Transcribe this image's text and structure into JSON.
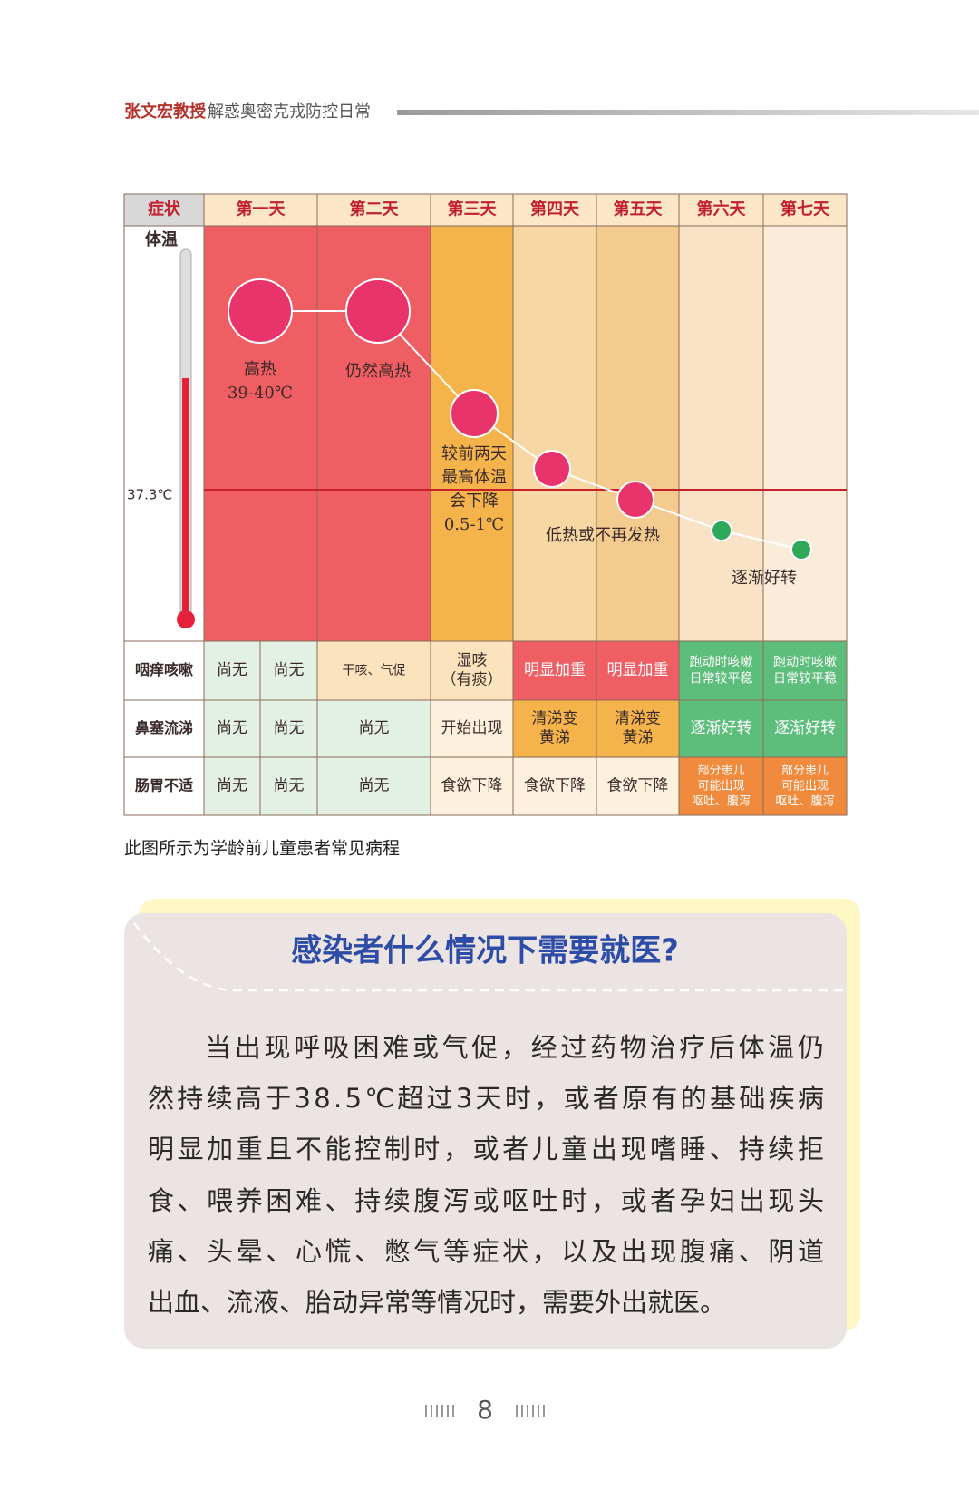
{
  "header": {
    "author": "张文宏教授",
    "title": "解惑奥密克戎防控日常"
  },
  "figure": {
    "columns": [
      "症状",
      "第一天",
      "第二天",
      "第三天",
      "第四天",
      "第五天",
      "第六天",
      "第七天"
    ],
    "temperature": {
      "label": "体温",
      "threshold": "37.3℃",
      "annotations": [
        [
          "高热",
          "39-40℃"
        ],
        [
          "仍然高热"
        ],
        [
          "较前两天",
          "最高体温",
          "会下降",
          "0.5-1℃"
        ],
        [
          "低热或不再发热"
        ],
        [
          "逐渐好转"
        ]
      ]
    },
    "symptoms": [
      {
        "name": "咽痒咳嗽",
        "cells": [
          [
            "尚无"
          ],
          [
            "尚无"
          ],
          [
            "干咳、气促"
          ],
          [
            "湿咳",
            "（有痰）"
          ],
          [
            "明显加重"
          ],
          [
            "明显加重"
          ],
          [
            "跑动时咳嗽",
            "日常较平稳"
          ],
          [
            "跑动时咳嗽",
            "日常较平稳"
          ]
        ]
      },
      {
        "name": "鼻塞流涕",
        "cells": [
          [
            "尚无"
          ],
          [
            "尚无"
          ],
          [
            "尚无"
          ],
          [
            "开始出现"
          ],
          [
            "清涕变",
            "黄涕"
          ],
          [
            "清涕变",
            "黄涕"
          ],
          [
            "逐渐好转"
          ],
          [
            "逐渐好转"
          ]
        ]
      },
      {
        "name": "肠胃不适",
        "cells": [
          [
            "尚无"
          ],
          [
            "尚无"
          ],
          [
            "尚无"
          ],
          [
            "食欲下降"
          ],
          [
            "食欲下降"
          ],
          [
            "食欲下降"
          ],
          [
            "部分患儿",
            "可能出现",
            "呕吐、腹泻"
          ],
          [
            "部分患儿",
            "可能出现",
            "呕吐、腹泻"
          ]
        ]
      }
    ],
    "caption": "此图所示为学龄前儿童患者常见病程"
  },
  "callout": {
    "title": "感染者什么情况下需要就医?",
    "lines": [
      "当出现呼吸困难或气促，经过药物治疗后体温仍",
      "然持续高于38.5℃超过3天时，或者原有的基础疾病",
      "明显加重且不能控制时，或者儿童出现嗜睡、持续拒",
      "食、喂养困难、持续腹泻或呕吐时，或者孕妇出现头",
      "痛、头晕、心慌、憋气等症状，以及出现腹痛、阴道",
      "出血、流液、胎动异常等情况时，需要外出就医。"
    ]
  },
  "page_number": "8"
}
